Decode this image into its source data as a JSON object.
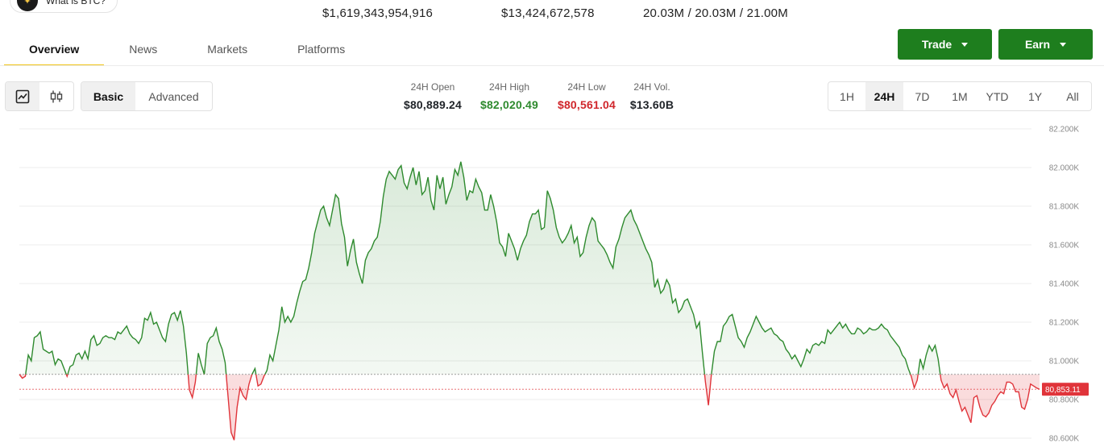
{
  "header": {
    "chip_label": "What is BTC?",
    "market_cap": "$1,619,343,954,916",
    "volume": "$13,424,672,578",
    "supply": "20.03M / 20.03M / 21.00M"
  },
  "tabs": [
    {
      "label": "Overview",
      "active": true
    },
    {
      "label": "News",
      "active": false
    },
    {
      "label": "Markets",
      "active": false
    },
    {
      "label": "Platforms",
      "active": false
    }
  ],
  "actions": {
    "trade": "Trade",
    "earn": "Earn"
  },
  "view": {
    "basic": "Basic",
    "advanced": "Advanced",
    "selected": "Basic",
    "chart_kind_selected": "line"
  },
  "stats24h": [
    {
      "label": "24H Open",
      "value": "$80,889.24",
      "color": "#1f2328"
    },
    {
      "label": "24H High",
      "value": "$82,020.49",
      "color": "#2e8a2e"
    },
    {
      "label": "24H Low",
      "value": "$80,561.04",
      "color": "#d0262b"
    },
    {
      "label": "24H Vol.",
      "value": "$13.60B",
      "color": "#1f2328"
    }
  ],
  "ranges": [
    "1H",
    "24H",
    "7D",
    "1M",
    "YTD",
    "1Y",
    "All"
  ],
  "range_selected": "24H",
  "colors": {
    "up": "#2e8a2e",
    "down": "#e0343a",
    "trade_button": "#1e7e1e",
    "tab_underline": "#f0c419"
  },
  "icons": {
    "line_chart": "line-chart-icon",
    "candles": "candlestick-icon",
    "chip": "sparkle-icon"
  },
  "chart_data": {
    "type": "line",
    "baseline": 80930,
    "current_price_label": "80,853.11",
    "current_price": 80853.11,
    "ylim": [
      80600,
      82200
    ],
    "yticks": [
      "82.200K",
      "82.000K",
      "81.800K",
      "81.600K",
      "81.400K",
      "81.200K",
      "81.000K",
      "80.800K",
      "80.600K"
    ],
    "grid": true,
    "values": [
      80930,
      80910,
      80920,
      81030,
      81000,
      81120,
      81130,
      81150,
      81060,
      81050,
      81040,
      81050,
      80980,
      81010,
      81000,
      80960,
      80920,
      80970,
      80980,
      81030,
      81040,
      81010,
      81050,
      81010,
      81110,
      81130,
      81080,
      81090,
      81120,
      81130,
      81120,
      81120,
      81110,
      81150,
      81140,
      81160,
      81180,
      81140,
      81120,
      81110,
      81090,
      81120,
      81220,
      81210,
      81250,
      81190,
      81200,
      81160,
      81120,
      81100,
      81190,
      81240,
      81250,
      81210,
      81260,
      81180,
      81040,
      80850,
      80810,
      80890,
      81040,
      80980,
      80930,
      81090,
      81120,
      81130,
      81170,
      81100,
      81060,
      80990,
      80810,
      80630,
      80590,
      80760,
      80860,
      80820,
      80800,
      80880,
      80930,
      80960,
      80870,
      80880,
      80920,
      80950,
      81030,
      81000,
      81080,
      81160,
      81280,
      81200,
      81230,
      81200,
      81230,
      81300,
      81360,
      81410,
      81420,
      81480,
      81560,
      81660,
      81720,
      81780,
      81800,
      81740,
      81700,
      81780,
      81860,
      81840,
      81710,
      81640,
      81490,
      81570,
      81630,
      81510,
      81450,
      81400,
      81520,
      81560,
      81580,
      81620,
      81640,
      81720,
      81850,
      81940,
      81980,
      81960,
      81940,
      81990,
      82010,
      81920,
      81890,
      81950,
      82000,
      81910,
      81980,
      81860,
      81880,
      81950,
      81830,
      81780,
      81960,
      81890,
      81950,
      81810,
      81860,
      81900,
      81990,
      81960,
      82030,
      81950,
      81830,
      81880,
      81870,
      81940,
      81900,
      81870,
      81780,
      81780,
      81860,
      81800,
      81720,
      81610,
      81590,
      81540,
      81660,
      81620,
      81580,
      81520,
      81580,
      81620,
      81650,
      81720,
      81760,
      81760,
      81780,
      81680,
      81690,
      81880,
      81840,
      81780,
      81690,
      81640,
      81610,
      81630,
      81660,
      81700,
      81610,
      81640,
      81540,
      81560,
      81640,
      81700,
      81740,
      81720,
      81620,
      81600,
      81580,
      81550,
      81510,
      81480,
      81590,
      81630,
      81690,
      81740,
      81760,
      81780,
      81730,
      81700,
      81660,
      81620,
      81580,
      81550,
      81510,
      81380,
      81420,
      81350,
      81370,
      81420,
      81390,
      81300,
      81320,
      81250,
      81270,
      81310,
      81320,
      81280,
      81240,
      81170,
      81200,
      81040,
      80890,
      80770,
      80930,
      81050,
      81100,
      81100,
      81180,
      81200,
      81230,
      81240,
      81180,
      81120,
      81100,
      81070,
      81120,
      81150,
      81190,
      81230,
      81200,
      81170,
      81150,
      81160,
      81170,
      81140,
      81130,
      81110,
      81100,
      81060,
      81040,
      81010,
      81030,
      81000,
      80970,
      81010,
      81060,
      81040,
      81080,
      81090,
      81080,
      81100,
      81090,
      81160,
      81140,
      81160,
      81180,
      81200,
      81170,
      81190,
      81160,
      81140,
      81140,
      81170,
      81160,
      81140,
      81150,
      81170,
      81160,
      81160,
      81170,
      81190,
      81170,
      81160,
      81130,
      81110,
      81090,
      81070,
      81030,
      81010,
      80960,
      80920,
      80860,
      80900,
      81010,
      80960,
      81030,
      81080,
      81050,
      81080,
      81010,
      80900,
      80860,
      80880,
      80830,
      80810,
      80850,
      80790,
      80740,
      80760,
      80720,
      80680,
      80810,
      80820,
      80760,
      80720,
      80710,
      80730,
      80770,
      80790,
      80820,
      80840,
      80830,
      80890,
      80890,
      80880,
      80840,
      80840,
      80760,
      80750,
      80800,
      80880,
      80870,
      80860,
      80853
    ]
  }
}
